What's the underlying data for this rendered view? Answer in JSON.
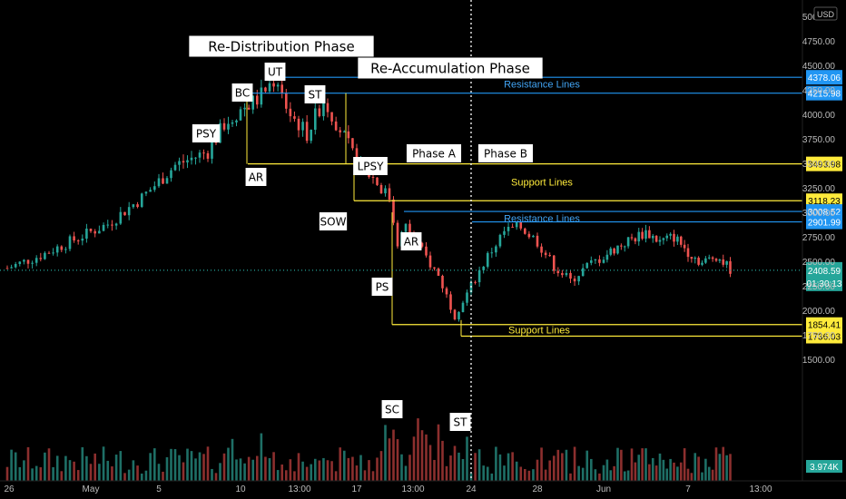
{
  "chart_data": {
    "type": "candlestick",
    "currency": "USD",
    "phases": [
      {
        "label": "Re-Distribution Phase"
      },
      {
        "label": "Re-Accumulation Phase"
      },
      {
        "label": "Phase A"
      },
      {
        "label": "Phase B"
      }
    ],
    "wyckoff_labels": [
      {
        "text": "PSY",
        "x": "May 8",
        "y": 4080
      },
      {
        "text": "BC",
        "x": "May 10 12:00",
        "y": 4190
      },
      {
        "text": "UT",
        "x": "May 12",
        "y": 4380
      },
      {
        "text": "ST",
        "x": "May 15",
        "y": 4200
      },
      {
        "text": "AR",
        "x": "May 10 12:00",
        "y": 3500
      },
      {
        "text": "LPSY",
        "x": "May 18",
        "y": 3450
      },
      {
        "text": "SOW",
        "x": "May 17",
        "y": 3100
      },
      {
        "text": "AR",
        "x": "May 20",
        "y": 2990
      },
      {
        "text": "PS",
        "x": "May 19",
        "y": 2600
      },
      {
        "text": "SC",
        "x": "May 19 12:00",
        "y": 1850
      },
      {
        "text": "ST",
        "x": "May 23",
        "y": 1736
      }
    ],
    "price_levels": [
      {
        "value": 4378.06,
        "label": "4378.06",
        "color": "#2962ff",
        "kind": "resistance"
      },
      {
        "value": 4215.98,
        "label": "4215.98",
        "color": "#2962ff",
        "kind": "resistance"
      },
      {
        "value": 3493.98,
        "label": "3493.98",
        "color": "#ffeb3b",
        "kind": "support"
      },
      {
        "value": 3118.23,
        "label": "3118.23",
        "color": "#ffeb3b",
        "kind": "support"
      },
      {
        "value": 3008.52,
        "label": "3008.52",
        "color": "#2962ff",
        "kind": "resistance"
      },
      {
        "value": 2901.99,
        "label": "2901.99",
        "color": "#2962ff",
        "kind": "resistance"
      },
      {
        "value": 1854.41,
        "label": "1854.41",
        "color": "#ffeb3b",
        "kind": "support"
      },
      {
        "value": 1736.03,
        "label": "1736.03",
        "color": "#ffeb3b",
        "kind": "support"
      }
    ],
    "zone_labels": [
      {
        "text": "Resistance Lines",
        "color": "#42a5f5",
        "y": 4310
      },
      {
        "text": "Support Lines",
        "color": "#ffeb3b",
        "y": 3310
      },
      {
        "text": "Resistance Lines",
        "color": "#42a5f5",
        "y": 2938
      },
      {
        "text": "Support Lines",
        "color": "#ffeb3b",
        "y": 1800
      }
    ],
    "current_price": {
      "value": 2408.59,
      "label": "2408.59",
      "countdown": "01:30:13",
      "color": "#26a69a"
    },
    "volume_label": "3.974K",
    "y_axis": {
      "ticks": [
        "5000.00",
        "4750.00",
        "4500.00",
        "4250.00",
        "4000.00",
        "3750.00",
        "3500.00",
        "3250.00",
        "3000.00",
        "2750.00",
        "2500.00",
        "2250.00",
        "2000.00",
        "1750.00",
        "1500.00"
      ],
      "tick_values": [
        5000,
        4750,
        4500,
        4250,
        4000,
        3750,
        3500,
        3250,
        3000,
        2750,
        2500,
        2250,
        2000,
        1750,
        1500
      ]
    },
    "x_axis": {
      "ticks": [
        "26",
        "May",
        "5",
        "10",
        "13:00",
        "17",
        "13:00",
        "24",
        "28",
        "Jun",
        "7",
        "13:00"
      ]
    },
    "price_series_approx": [
      [
        "Apr 26",
        2430
      ],
      [
        "Apr 28",
        2560
      ],
      [
        "Apr 30",
        2720
      ],
      [
        "May 2",
        2880
      ],
      [
        "May 4",
        3150
      ],
      [
        "May 6",
        3480
      ],
      [
        "May 8",
        3620
      ],
      [
        "May 9",
        3900
      ],
      [
        "May 10",
        4050
      ],
      [
        "May 11",
        4150
      ],
      [
        "May 12",
        4350
      ],
      [
        "May 13",
        4000
      ],
      [
        "May 14",
        3800
      ],
      [
        "May 15",
        4150
      ],
      [
        "May 16",
        3850
      ],
      [
        "May 17",
        3500
      ],
      [
        "May 18",
        3350
      ],
      [
        "May 19",
        3150
      ],
      [
        "May 19 12:00",
        2700
      ],
      [
        "May 20",
        2850
      ],
      [
        "May 21",
        2600
      ],
      [
        "May 22",
        2350
      ],
      [
        "May 23",
        1950
      ],
      [
        "May 24",
        2250
      ],
      [
        "May 25",
        2550
      ],
      [
        "May 26",
        2800
      ],
      [
        "May 27",
        2850
      ],
      [
        "May 28",
        2700
      ],
      [
        "May 29",
        2450
      ],
      [
        "May 30",
        2300
      ],
      [
        "May 31",
        2450
      ],
      [
        "Jun 2",
        2650
      ],
      [
        "Jun 4",
        2800
      ],
      [
        "Jun 5",
        2700
      ],
      [
        "Jun 6",
        2750
      ],
      [
        "Jun 7",
        2600
      ],
      [
        "Jun 8",
        2480
      ],
      [
        "Jun 9",
        2560
      ],
      [
        "Jun 10",
        2420
      ]
    ]
  }
}
